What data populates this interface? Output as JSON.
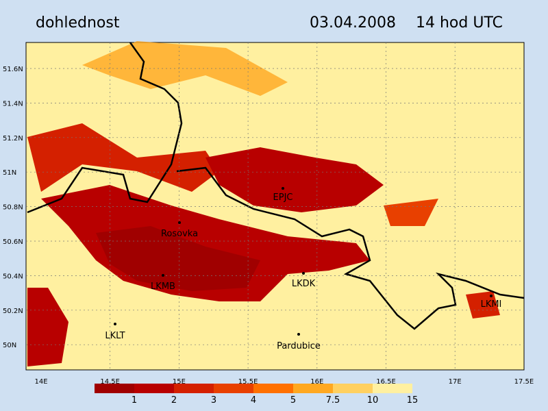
{
  "header": {
    "title": "dohlednost",
    "date": "03.04.2008",
    "time": "14 hod UTC"
  },
  "lat_labels": [
    "51.6N",
    "51.4N",
    "51.2N",
    "51N",
    "50.8N",
    "50.6N",
    "50.4N",
    "50.2N",
    "50N"
  ],
  "lon_labels": [
    "14E",
    "14.5E",
    "15E",
    "15.5E",
    "16E",
    "16.5E",
    "17E",
    "17.5E"
  ],
  "places": [
    {
      "label": "EPJC"
    },
    {
      "label": "Rosovka"
    },
    {
      "label": "LKMB"
    },
    {
      "label": "LKDK"
    },
    {
      "label": "LKLT"
    },
    {
      "label": "Pardubice"
    },
    {
      "label": "LKMI"
    }
  ],
  "legend": {
    "colors": [
      "#a00000",
      "#b80000",
      "#d42000",
      "#e84000",
      "#ff7000",
      "#ffa820",
      "#ffd060",
      "#fff0a0"
    ],
    "labels": [
      1,
      2,
      3,
      4,
      5,
      7.5,
      10,
      15
    ]
  }
}
